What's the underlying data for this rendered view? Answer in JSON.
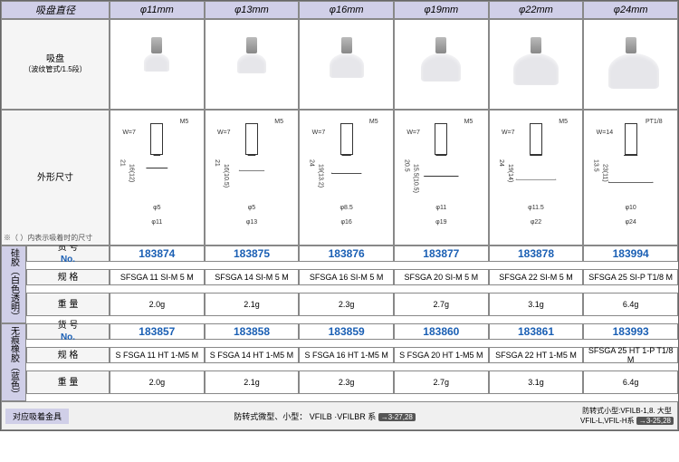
{
  "header": {
    "corner": "吸盘直径",
    "cols": [
      "φ11mm",
      "φ13mm",
      "φ16mm",
      "φ19mm",
      "φ22mm",
      "φ24mm"
    ]
  },
  "row_img": {
    "label": "吸盘",
    "sublabel": "（波纹管式/1.5段）"
  },
  "row_dim": {
    "label": "外形尺寸",
    "note": "※（ ）内表示吸着时的尺寸"
  },
  "dims": [
    {
      "m": "M5",
      "w": "W=7",
      "h": "21",
      "h2": "16(12)",
      "d1": "φ5",
      "d2": "φ11"
    },
    {
      "m": "M5",
      "w": "W=7",
      "h": "21",
      "h2": "16(10.5)",
      "d1": "φ5",
      "d2": "φ13"
    },
    {
      "m": "M5",
      "w": "W=7",
      "h": "24",
      "h2": "19(13.2)",
      "d1": "φ8.5",
      "d2": "φ16"
    },
    {
      "m": "M5",
      "w": "W=7",
      "h": "20.5",
      "h2": "15.5(10.5)",
      "d1": "φ11",
      "d2": "φ19"
    },
    {
      "m": "M5",
      "w": "W=7",
      "h": "24",
      "h2": "19(14)",
      "d1": "φ11.5",
      "d2": "φ22"
    },
    {
      "m": "PT1/8",
      "w": "W=14",
      "h": "13.5",
      "h2": "23(11)",
      "d1": "φ10",
      "d2": "φ24"
    }
  ],
  "section1": {
    "side": "硅胶（白色透明）",
    "rows": [
      {
        "lbl": "货 号",
        "lbl2": "No.",
        "vals": [
          "183874",
          "183875",
          "183876",
          "183877",
          "183878",
          "183994"
        ]
      },
      {
        "lbl": "规 格",
        "vals": [
          "SFSGA  11 SI-M 5 M",
          "SFSGA  14 SI-M 5 M",
          "SFSGA  16 SI-M 5 M",
          "SFSGA  20 SI-M 5 M",
          "SFSGA  22 SI-M 5 M",
          "SFSGA  25 SI-P T1/8 M"
        ]
      },
      {
        "lbl": "重 量",
        "vals": [
          "2.0g",
          "2.1g",
          "2.3g",
          "2.7g",
          "3.1g",
          "6.4g"
        ]
      }
    ]
  },
  "section2": {
    "side": "无痕橡胶（蓝色）",
    "rows": [
      {
        "lbl": "货 号",
        "lbl2": "No.",
        "vals": [
          "183857",
          "183858",
          "183859",
          "183860",
          "183861",
          "183993"
        ]
      },
      {
        "lbl": "规 格",
        "vals": [
          "S FSGA  11 HT 1-M5 M",
          "S FSGA  14 HT 1-M5 M",
          "S FSGA  16 HT 1-M5 M",
          "S FSGA  20 HT 1-M5 M",
          "SFSGA  22 HT 1-M5 M",
          "SFSGA  25 HT 1-P T1/8 M"
        ]
      },
      {
        "lbl": "重 量",
        "vals": [
          "2.0g",
          "2.1g",
          "2.3g",
          "2.7g",
          "3.1g",
          "6.4g"
        ]
      }
    ]
  },
  "footer": {
    "lbl": "对应吸着金具",
    "mid": "防转式微型、小型： VFILB ·VFILBR 系",
    "midref": "→3-27,28",
    "right1": "防转式小型:VFILB-1,8. 大型",
    "right2": "VFIL-L,VFIL-H系",
    "rightref": "→3-25,28"
  },
  "sizes": [
    28,
    32,
    38,
    44,
    50,
    56
  ]
}
